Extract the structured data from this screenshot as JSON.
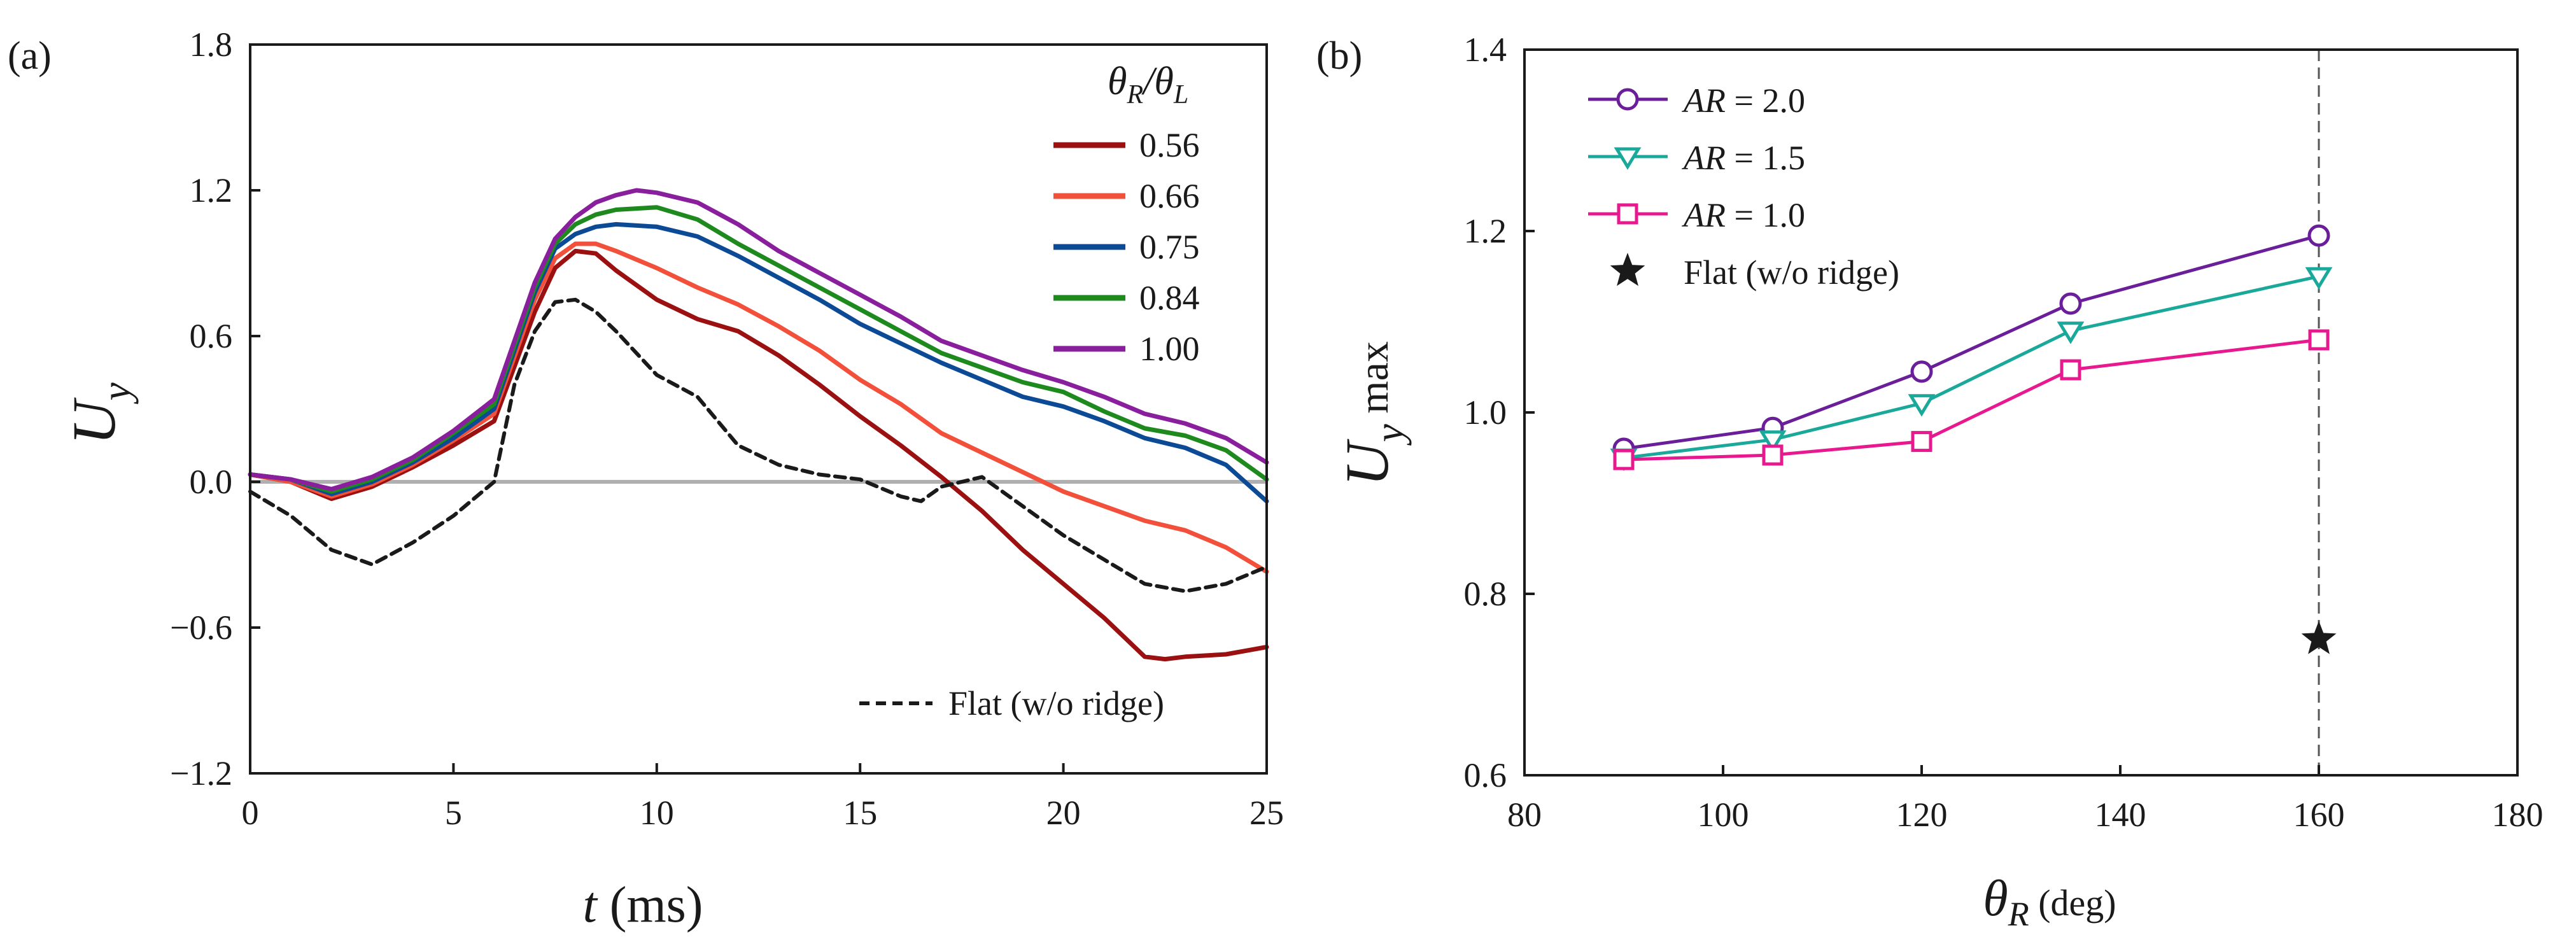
{
  "chart_data": [
    {
      "id": "a",
      "type": "line",
      "panel_label": "(a)",
      "xlabel_var": "t",
      "xlabel_unit": " (ms)",
      "ylabel_var": "U",
      "ylabel_sub": "y",
      "xlim": [
        0,
        25
      ],
      "ylim": [
        -1.2,
        1.8
      ],
      "xticks": [
        0,
        5,
        10,
        15,
        20,
        25
      ],
      "xtick_labels": [
        "0",
        "5",
        "10",
        "15",
        "20",
        "25"
      ],
      "yticks": [
        -1.2,
        -0.6,
        0.0,
        0.6,
        1.2,
        1.8
      ],
      "ytick_labels": [
        "−1.2",
        "−0.6",
        "0.0",
        "0.6",
        "1.2",
        "1.8"
      ],
      "zero_line": {
        "y": 0,
        "color": "#b0b0b0"
      },
      "legend_title": {
        "a": "θ",
        "a_sub": "R",
        "slash": "/θ",
        "b_sub": "L"
      },
      "legend_position": "top-right",
      "series": [
        {
          "name": "0.56",
          "color": "#9b1010",
          "dashed": false,
          "x": [
            0,
            1,
            2,
            3,
            4,
            5,
            6,
            7,
            7.5,
            8,
            8.5,
            9,
            10,
            11,
            12,
            13,
            14,
            15,
            16,
            17,
            18,
            19,
            20,
            21,
            22,
            22.5,
            23,
            24,
            25
          ],
          "y": [
            0.03,
            0.0,
            -0.07,
            -0.02,
            0.06,
            0.15,
            0.25,
            0.7,
            0.88,
            0.95,
            0.94,
            0.87,
            0.75,
            0.67,
            0.62,
            0.52,
            0.4,
            0.27,
            0.15,
            0.02,
            -0.12,
            -0.28,
            -0.42,
            -0.56,
            -0.72,
            -0.73,
            -0.72,
            -0.71,
            -0.68
          ]
        },
        {
          "name": "0.66",
          "color": "#f2503a",
          "dashed": false,
          "x": [
            0,
            1,
            2,
            3,
            4,
            5,
            6,
            7,
            7.5,
            8,
            8.5,
            9,
            10,
            11,
            12,
            13,
            14,
            15,
            16,
            17,
            18,
            19,
            20,
            21,
            22,
            23,
            24,
            25
          ],
          "y": [
            0.03,
            0.0,
            -0.06,
            -0.01,
            0.07,
            0.17,
            0.28,
            0.75,
            0.92,
            0.98,
            0.98,
            0.95,
            0.88,
            0.8,
            0.73,
            0.64,
            0.54,
            0.42,
            0.32,
            0.2,
            0.12,
            0.04,
            -0.04,
            -0.1,
            -0.16,
            -0.2,
            -0.27,
            -0.37
          ]
        },
        {
          "name": "0.75",
          "color": "#0d4a96",
          "dashed": false,
          "x": [
            0,
            1,
            2,
            3,
            4,
            5,
            6,
            7,
            7.5,
            8,
            8.5,
            9,
            10,
            11,
            12,
            13,
            14,
            15,
            16,
            17,
            18,
            19,
            20,
            21,
            22,
            23,
            24,
            25
          ],
          "y": [
            0.03,
            0.01,
            -0.05,
            0.0,
            0.08,
            0.18,
            0.3,
            0.78,
            0.96,
            1.02,
            1.05,
            1.06,
            1.05,
            1.01,
            0.93,
            0.84,
            0.75,
            0.65,
            0.57,
            0.49,
            0.42,
            0.35,
            0.31,
            0.25,
            0.18,
            0.14,
            0.07,
            -0.08
          ]
        },
        {
          "name": "0.84",
          "color": "#1e8a1e",
          "dashed": false,
          "x": [
            0,
            1,
            2,
            3,
            4,
            5,
            6,
            7,
            7.5,
            8,
            8.5,
            9,
            10,
            11,
            12,
            13,
            14,
            15,
            16,
            17,
            18,
            19,
            20,
            21,
            22,
            23,
            24,
            25
          ],
          "y": [
            0.03,
            0.01,
            -0.04,
            0.01,
            0.09,
            0.2,
            0.32,
            0.8,
            0.98,
            1.06,
            1.1,
            1.12,
            1.13,
            1.08,
            0.98,
            0.89,
            0.8,
            0.71,
            0.62,
            0.53,
            0.47,
            0.41,
            0.37,
            0.29,
            0.22,
            0.19,
            0.13,
            0.01
          ]
        },
        {
          "name": "1.00",
          "color": "#8a1f9e",
          "dashed": false,
          "x": [
            0,
            1,
            2,
            3,
            4,
            5,
            6,
            7,
            7.5,
            8,
            8.5,
            9,
            9.5,
            10,
            11,
            12,
            13,
            14,
            15,
            16,
            17,
            18,
            19,
            20,
            21,
            22,
            23,
            24,
            25
          ],
          "y": [
            0.03,
            0.01,
            -0.03,
            0.02,
            0.1,
            0.21,
            0.34,
            0.82,
            1.0,
            1.09,
            1.15,
            1.18,
            1.2,
            1.19,
            1.15,
            1.06,
            0.95,
            0.86,
            0.77,
            0.68,
            0.58,
            0.52,
            0.46,
            0.41,
            0.35,
            0.28,
            0.24,
            0.18,
            0.08
          ]
        },
        {
          "name": "Flat (w/o ridge)",
          "color": "#1a1a1a",
          "dashed": true,
          "x": [
            0,
            1,
            2,
            3,
            4,
            5,
            6,
            6.5,
            7,
            7.5,
            8,
            8.5,
            9,
            10,
            11,
            12,
            13,
            14,
            15,
            16,
            16.5,
            17,
            18,
            19,
            20,
            21,
            22,
            23,
            24,
            25
          ],
          "y": [
            -0.04,
            -0.14,
            -0.28,
            -0.34,
            -0.25,
            -0.14,
            0.0,
            0.4,
            0.62,
            0.74,
            0.75,
            0.7,
            0.62,
            0.44,
            0.35,
            0.15,
            0.07,
            0.03,
            0.01,
            -0.06,
            -0.08,
            -0.02,
            0.02,
            -0.1,
            -0.22,
            -0.32,
            -0.42,
            -0.45,
            -0.42,
            -0.35
          ]
        }
      ]
    },
    {
      "id": "b",
      "type": "line",
      "panel_label": "(b)",
      "xlabel_var": "θ",
      "xlabel_sub": "R",
      "xlabel_unit": " (deg)",
      "ylabel_var": "U",
      "ylabel_sub": "y",
      "ylabel_suffix": " max",
      "xlim": [
        80,
        180
      ],
      "ylim": [
        0.6,
        1.4
      ],
      "xticks": [
        80,
        100,
        120,
        140,
        160,
        180
      ],
      "xtick_labels": [
        "80",
        "100",
        "120",
        "140",
        "160",
        "180"
      ],
      "yticks": [
        0.6,
        0.8,
        1.0,
        1.2,
        1.4
      ],
      "ytick_labels": [
        "0.6",
        "0.8",
        "1.0",
        "1.2",
        "1.4"
      ],
      "vline": {
        "x": 160,
        "dashed": true
      },
      "legend_position": "top-left",
      "series": [
        {
          "name_var": "AR",
          "name_val": " = 2.0",
          "color": "#6a1e9a",
          "marker": "circle",
          "x": [
            90,
            105,
            120,
            135,
            160
          ],
          "y": [
            0.96,
            0.983,
            1.045,
            1.12,
            1.195
          ]
        },
        {
          "name_var": "AR",
          "name_val": " = 1.5",
          "color": "#1aa89a",
          "marker": "triangle-down",
          "x": [
            90,
            105,
            120,
            135,
            160
          ],
          "y": [
            0.95,
            0.97,
            1.01,
            1.09,
            1.15
          ]
        },
        {
          "name_var": "AR",
          "name_val": " = 1.0",
          "color": "#e8198f",
          "marker": "square",
          "x": [
            90,
            105,
            120,
            135,
            160
          ],
          "y": [
            0.948,
            0.953,
            0.968,
            1.047,
            1.08
          ]
        }
      ],
      "points": [
        {
          "name": "Flat (w/o ridge)",
          "color": "#1a1a1a",
          "marker": "star",
          "x": 160,
          "y": 0.75
        }
      ]
    }
  ]
}
